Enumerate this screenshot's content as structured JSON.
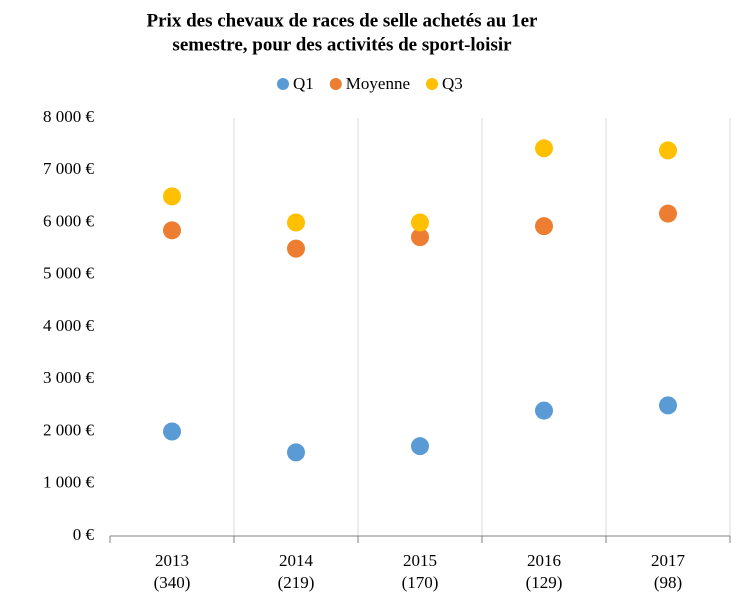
{
  "chart_data": {
    "type": "scatter",
    "title": [
      "Prix des chevaux de races de selle achetés au 1er",
      "semestre, pour des activités de sport-loisir"
    ],
    "categories": [
      [
        "2013",
        "(340)"
      ],
      [
        "2014",
        "(219)"
      ],
      [
        "2015",
        "(170)"
      ],
      [
        "2016",
        "(129)"
      ],
      [
        "2017",
        "(98)"
      ]
    ],
    "series": [
      {
        "name": "Q1",
        "color": "#5b9bd5",
        "values": [
          2000,
          1600,
          1720,
          2400,
          2500
        ]
      },
      {
        "name": "Moyenne",
        "color": "#ed7d31",
        "values": [
          5850,
          5500,
          5720,
          5930,
          6170
        ]
      },
      {
        "name": "Q3",
        "color": "#ffc000",
        "values": [
          6500,
          6000,
          6000,
          7420,
          7380
        ]
      }
    ],
    "ylim": [
      0,
      8000
    ],
    "yticks": [
      {
        "value": 0,
        "label": "0 €"
      },
      {
        "value": 1000,
        "label": "1 000 €"
      },
      {
        "value": 2000,
        "label": "2 000 €"
      },
      {
        "value": 3000,
        "label": "3 000 €"
      },
      {
        "value": 4000,
        "label": "4 000 €"
      },
      {
        "value": 5000,
        "label": "5 000 €"
      },
      {
        "value": 6000,
        "label": "6 000 €"
      },
      {
        "value": 7000,
        "label": "7 000 €"
      },
      {
        "value": 8000,
        "label": "8 000 €"
      }
    ],
    "legend": "top"
  }
}
